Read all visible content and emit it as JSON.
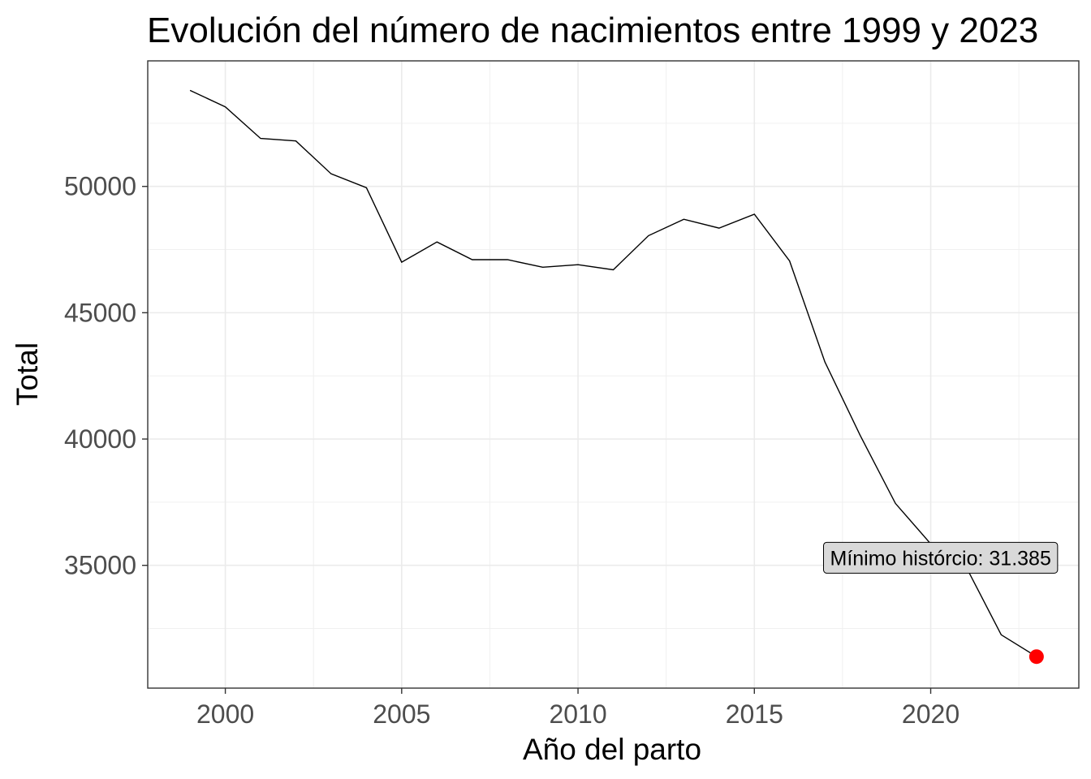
{
  "chart_data": {
    "type": "line",
    "title": "Evolución del número de nacimientos entre 1999 y 2023",
    "xlabel": "Año del parto",
    "ylabel": "Total",
    "xlim": [
      1997.8,
      2024.2
    ],
    "ylim": [
      30140,
      54970
    ],
    "x_ticks": [
      2000,
      2005,
      2010,
      2015,
      2020
    ],
    "y_ticks": [
      35000,
      40000,
      45000,
      50000
    ],
    "x_tick_labels": [
      "2000",
      "2005",
      "2010",
      "2015",
      "2020"
    ],
    "y_tick_labels": [
      "35000",
      "40000",
      "45000",
      "50000"
    ],
    "grid": true,
    "series": [
      {
        "x": [
          1999,
          2000,
          2001,
          2002,
          2003,
          2004,
          2005,
          2006,
          2007,
          2008,
          2009,
          2010,
          2011,
          2012,
          2013,
          2014,
          2015,
          2016,
          2017,
          2018,
          2019,
          2020,
          2021,
          2022,
          2023
        ],
        "values": [
          53800,
          53150,
          51900,
          51800,
          50500,
          49950,
          47000,
          47800,
          47100,
          47100,
          46800,
          46900,
          46700,
          48050,
          48700,
          48350,
          48900,
          47050,
          43050,
          40150,
          37450,
          35850,
          34950,
          32250,
          31385
        ],
        "color": "#000000"
      }
    ],
    "highlight": {
      "x": 2023,
      "y": 31385,
      "color": "#ff0000"
    },
    "annotation": {
      "text": "Mínimo histórcio: 31.385",
      "x": 2023,
      "y": 35300,
      "fill": "#d9d9d9"
    }
  }
}
